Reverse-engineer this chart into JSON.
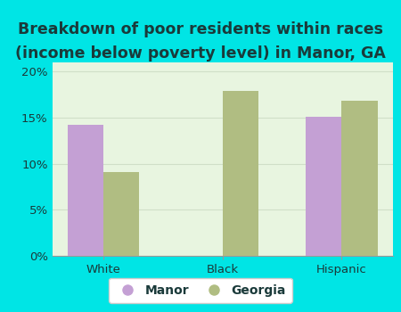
{
  "title_line1": "Breakdown of poor residents within races",
  "title_line2": "(income below poverty level) in Manor, GA",
  "categories": [
    "White",
    "Black",
    "Hispanic"
  ],
  "manor_values": [
    14.2,
    0,
    15.1
  ],
  "georgia_values": [
    9.1,
    17.9,
    16.8
  ],
  "manor_color": "#c4a0d4",
  "georgia_color": "#b0bd82",
  "background_outer": "#00e5e5",
  "background_inner": "#e8f5e0",
  "ylim": [
    0,
    21
  ],
  "yticks": [
    0,
    5,
    10,
    15,
    20
  ],
  "ytick_labels": [
    "0%",
    "5%",
    "10%",
    "15%",
    "20%"
  ],
  "bar_width": 0.3,
  "title_fontsize": 12.5,
  "legend_fontsize": 10,
  "tick_fontsize": 9.5,
  "grid_color": "#d0dfc8",
  "text_color": "#1a3a3a"
}
